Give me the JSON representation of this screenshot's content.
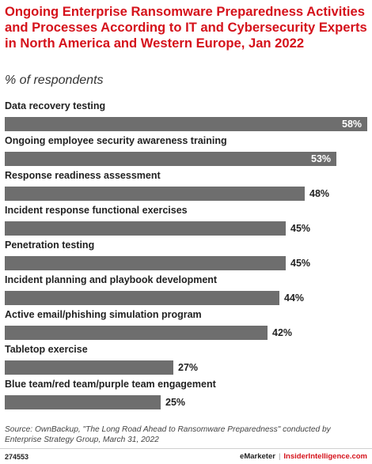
{
  "title": "Ongoing Enterprise Ransomware Preparedness Activities and Processes According to IT and Cybersecurity Experts in North America and Western Europe, Jan 2022",
  "subtitle": "% of respondents",
  "source": "Source: OwnBackup, \"The Long Road Ahead to Ransomware Preparedness\" conducted by Enterprise Strategy Group, March 31, 2022",
  "footer": {
    "id": "274553",
    "brand_left": "eMarketer",
    "separator": "|",
    "brand_right": "InsiderIntelligence.com"
  },
  "colors": {
    "title": "#d5121b",
    "bar": "#6e6e6e",
    "inside_label": "#ffffff"
  },
  "chart_data": {
    "type": "bar",
    "orientation": "horizontal",
    "categories": [
      "Data recovery testing",
      "Ongoing employee security awareness training",
      "Response readiness assessment",
      "Incident response functional exercises",
      "Penetration testing",
      "Incident planning and playbook development",
      "Active email/phishing simulation program",
      "Tabletop exercise",
      "Blue team/red team/purple team engagement"
    ],
    "values": [
      58,
      53,
      48,
      45,
      45,
      44,
      42,
      27,
      25
    ],
    "value_labels": [
      "58%",
      "53%",
      "48%",
      "45%",
      "45%",
      "44%",
      "42%",
      "27%",
      "25%"
    ],
    "xlim": [
      0,
      58
    ],
    "grid": false,
    "legend": "none"
  }
}
